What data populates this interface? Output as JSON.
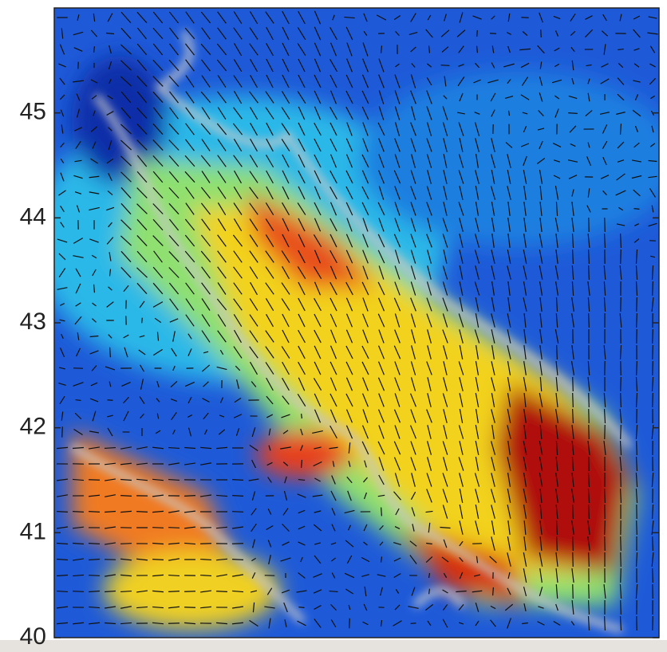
{
  "chart_data": {
    "type": "map",
    "ylim": [
      40,
      46
    ],
    "yticks": [
      40,
      41,
      42,
      43,
      44,
      45
    ]
  }
}
